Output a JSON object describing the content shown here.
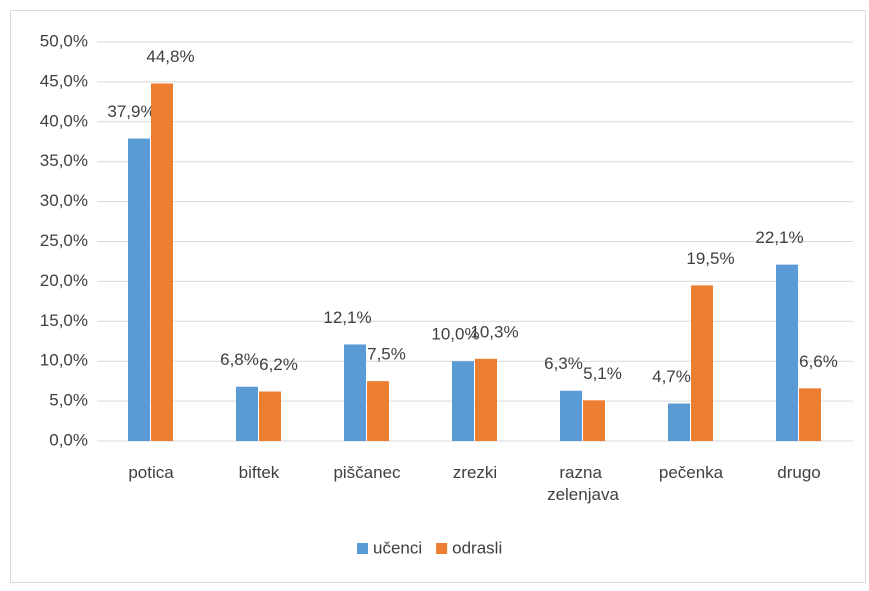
{
  "chart_data": {
    "type": "bar",
    "categories": [
      "potica",
      "biftek",
      "piščanec",
      "zrezki",
      "razna zelenjava",
      "pečenka",
      "drugo"
    ],
    "series": [
      {
        "name": "učenci",
        "color": "#5b9bd5",
        "values": [
          37.9,
          6.8,
          12.1,
          10.0,
          6.3,
          4.7,
          22.1
        ],
        "value_labels": [
          "37,9%",
          "6,8%",
          "12,1%",
          "10,0%",
          "6,3%",
          "4,7%",
          "22,1%"
        ]
      },
      {
        "name": "odrasli",
        "color": "#ed7d31",
        "values": [
          44.8,
          6.2,
          7.5,
          10.3,
          5.1,
          19.5,
          6.6
        ],
        "value_labels": [
          "44,8%",
          "6,2%",
          "7,5%",
          "10,3%",
          "5,1%",
          "19,5%",
          "6,6%"
        ]
      }
    ],
    "ylim": [
      0,
      50
    ],
    "yticks": [
      {
        "value": 0,
        "label": "0,0%"
      },
      {
        "value": 5,
        "label": "5,0%"
      },
      {
        "value": 10,
        "label": "10,0%"
      },
      {
        "value": 15,
        "label": "15,0%"
      },
      {
        "value": 20,
        "label": "20,0%"
      },
      {
        "value": 25,
        "label": "25,0%"
      },
      {
        "value": 30,
        "label": "30,0%"
      },
      {
        "value": 35,
        "label": "35,0%"
      },
      {
        "value": 40,
        "label": "40,0%"
      },
      {
        "value": 45,
        "label": "45,0%"
      },
      {
        "value": 50,
        "label": "50,0%"
      }
    ],
    "grid": true,
    "legend": "bottom"
  }
}
